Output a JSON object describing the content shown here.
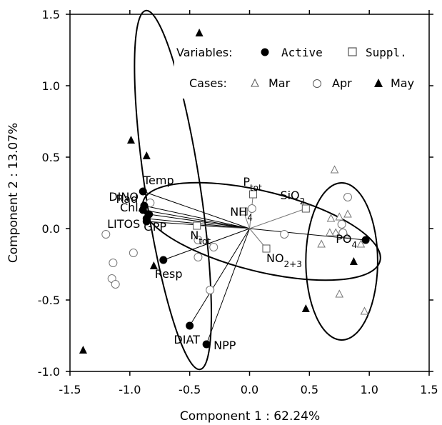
{
  "chart_data": {
    "type": "scatter",
    "title": "",
    "xlabel": "Component 1 : 62.24%",
    "ylabel": "Component 2 : 13.07%",
    "xlim": [
      -1.5,
      1.5
    ],
    "ylim": [
      -1.0,
      1.5
    ],
    "xticks": [
      "-1.5",
      "-1.0",
      "-0.5",
      "0.0",
      "0.5",
      "1.0",
      "1.5"
    ],
    "yticks": [
      "1.5",
      "1.0",
      "0.5",
      "0.0",
      "-0.5",
      "-1.0"
    ],
    "grid": false,
    "legend": {
      "position": "top-right",
      "variables_label": "Variables:",
      "active_label": "Active",
      "suppl_label": "Suppl.",
      "cases_label": "Cases:",
      "mar_label": "Mar",
      "apr_label": "Apr",
      "may_label": "May"
    },
    "active_variables": [
      {
        "name": "Temp",
        "x": -0.89,
        "y": 0.26
      },
      {
        "name": "DINO",
        "x": -0.88,
        "y": 0.16
      },
      {
        "name": "Rad",
        "x": -0.89,
        "y": 0.13
      },
      {
        "name": "ChlA",
        "x": -0.84,
        "y": 0.1
      },
      {
        "name": "LITOS",
        "x": -0.86,
        "y": 0.07
      },
      {
        "name": "GPP",
        "x": -0.86,
        "y": 0.05
      },
      {
        "name": "Resp",
        "x": -0.72,
        "y": -0.22
      },
      {
        "name": "DIAT",
        "x": -0.5,
        "y": -0.68
      },
      {
        "name": "NPP",
        "x": -0.36,
        "y": -0.81
      },
      {
        "name": "PO4",
        "x": 0.97,
        "y": -0.08
      }
    ],
    "supplementary_variables": [
      {
        "name": "Ptot",
        "x": 0.03,
        "y": 0.24
      },
      {
        "name": "NH4",
        "x": -0.05,
        "y": 0.12
      },
      {
        "name": "SiO2",
        "x": 0.47,
        "y": 0.14
      },
      {
        "name": "Ntot",
        "x": -0.44,
        "y": 0.02
      },
      {
        "name": "NO2+3",
        "x": 0.14,
        "y": -0.14
      }
    ],
    "cases_mar": [
      {
        "x": 0.71,
        "y": 0.41
      },
      {
        "x": 0.68,
        "y": 0.07
      },
      {
        "x": 0.75,
        "y": 0.08
      },
      {
        "x": 0.82,
        "y": 0.1
      },
      {
        "x": 0.6,
        "y": -0.11
      },
      {
        "x": 0.72,
        "y": -0.03
      },
      {
        "x": 0.8,
        "y": -0.04
      },
      {
        "x": 0.93,
        "y": -0.11
      },
      {
        "x": 0.75,
        "y": -0.46
      },
      {
        "x": 0.96,
        "y": -0.58
      },
      {
        "x": 0.67,
        "y": -0.03
      }
    ],
    "cases_apr": [
      {
        "x": 0.82,
        "y": 0.22
      },
      {
        "x": 0.77,
        "y": 0.03
      },
      {
        "x": 0.78,
        "y": -0.03
      },
      {
        "x": 0.29,
        "y": -0.04
      },
      {
        "x": 0.02,
        "y": 0.14
      },
      {
        "x": -0.3,
        "y": -0.13
      },
      {
        "x": -0.43,
        "y": -0.2
      },
      {
        "x": -0.43,
        "y": -0.08
      },
      {
        "x": -0.33,
        "y": -0.43
      },
      {
        "x": -1.2,
        "y": -0.04
      },
      {
        "x": -0.97,
        "y": -0.17
      },
      {
        "x": -1.14,
        "y": -0.24
      },
      {
        "x": -1.15,
        "y": -0.35
      },
      {
        "x": -1.12,
        "y": -0.39
      },
      {
        "x": -0.83,
        "y": 0.18
      }
    ],
    "cases_may": [
      {
        "x": -0.42,
        "y": 1.37
      },
      {
        "x": -0.99,
        "y": 0.62
      },
      {
        "x": -0.86,
        "y": 0.51
      },
      {
        "x": -0.8,
        "y": -0.26
      },
      {
        "x": 0.47,
        "y": -0.56
      },
      {
        "x": 0.87,
        "y": -0.23
      },
      {
        "x": -1.39,
        "y": -0.85
      }
    ],
    "ellipses": [
      {
        "cx": -0.64,
        "cy": 0.27,
        "rx": 0.23,
        "ry": 1.27,
        "rot": -8.6
      },
      {
        "cx": 0.1,
        "cy": -0.02,
        "rx": 1.02,
        "ry": 0.28,
        "rot": 14.0
      },
      {
        "cx": 0.77,
        "cy": -0.23,
        "rx": 0.3,
        "ry": 0.55,
        "rot": 0
      }
    ]
  }
}
